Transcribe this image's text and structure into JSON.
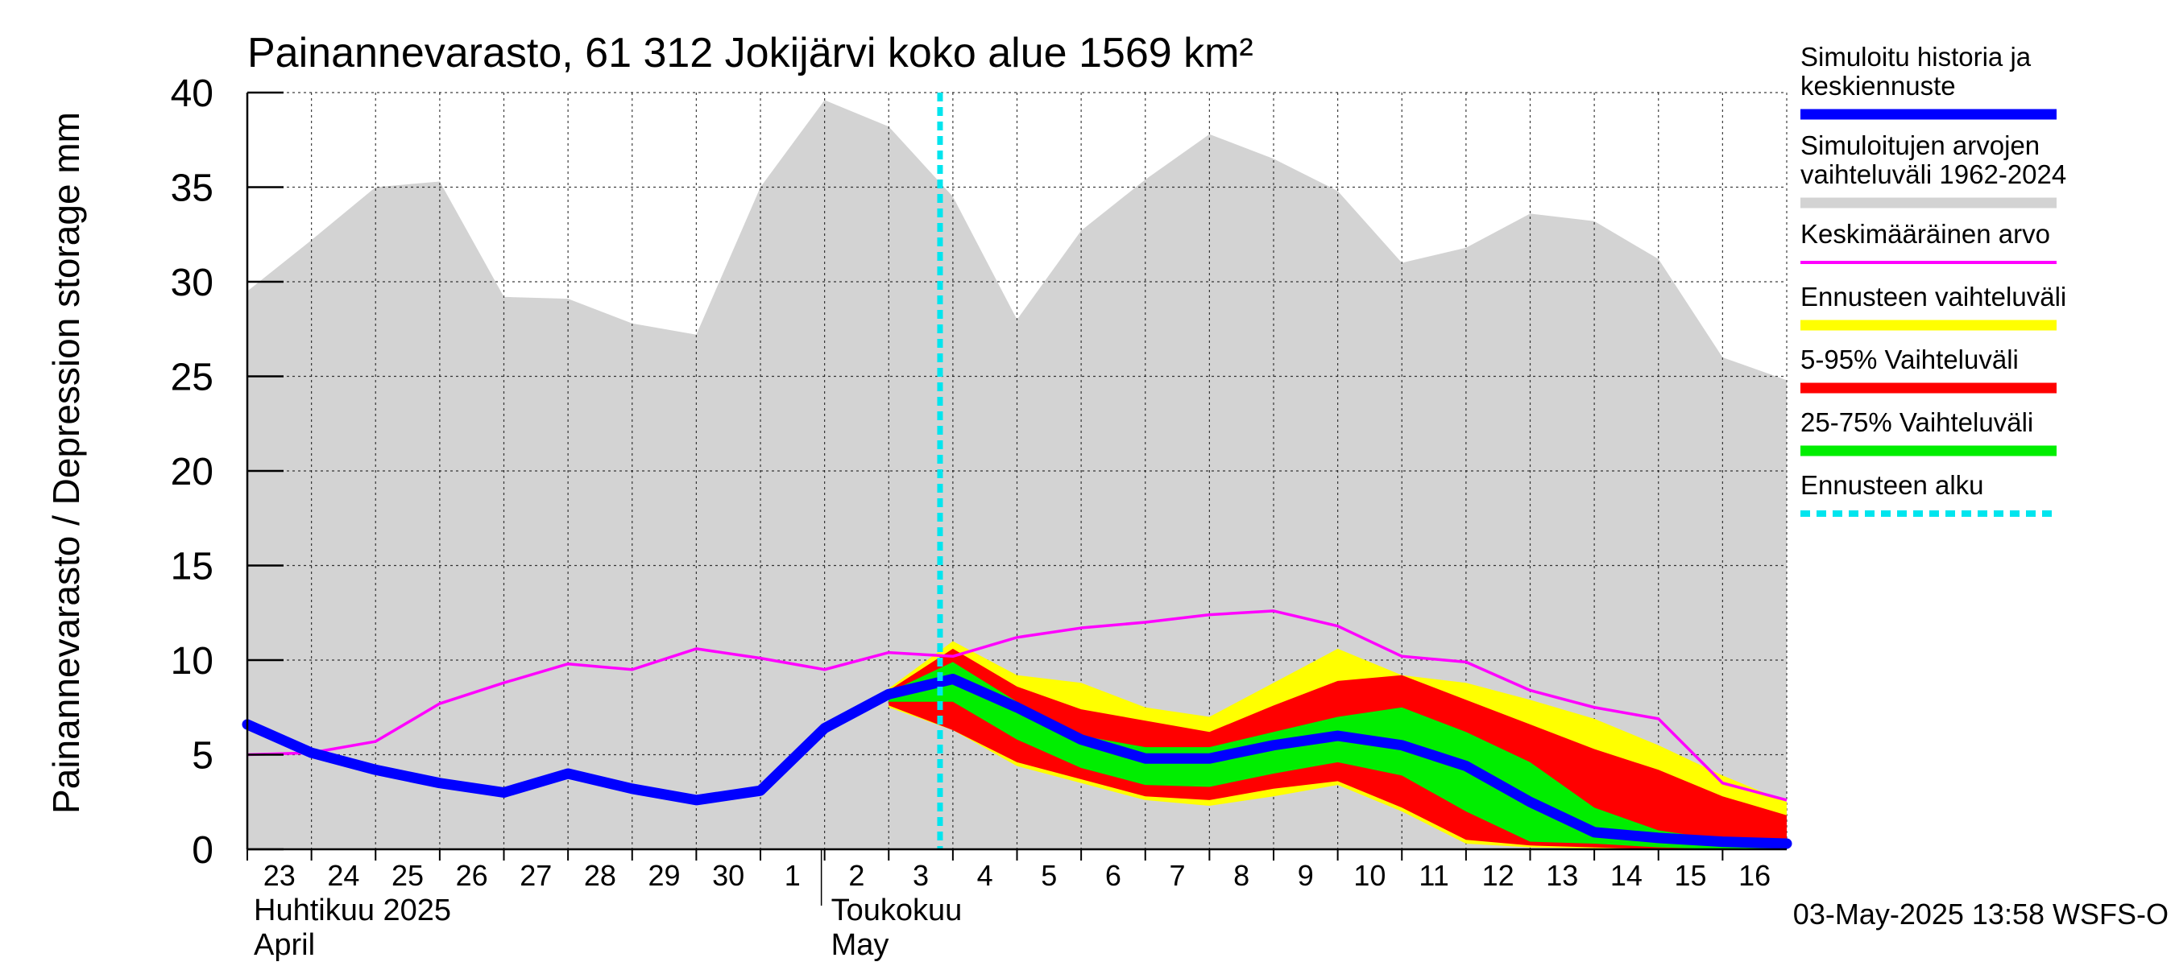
{
  "chart_data": {
    "type": "area",
    "title": "Painannevarasto, 61 312 Jokijärvi koko alue 1569 km²",
    "ylabel": "Painannevarasto / Depression storage    mm",
    "ylim": [
      0,
      40
    ],
    "y_ticks": [
      "0",
      "5",
      "10",
      "15",
      "20",
      "25",
      "30",
      "35",
      "40"
    ],
    "grid": true,
    "x_dates": [
      "2025-04-23",
      "2025-04-24",
      "2025-04-25",
      "2025-04-26",
      "2025-04-27",
      "2025-04-28",
      "2025-04-29",
      "2025-04-30",
      "2025-05-01",
      "2025-05-02",
      "2025-05-03",
      "2025-05-04",
      "2025-05-05",
      "2025-05-06",
      "2025-05-07",
      "2025-05-08",
      "2025-05-09",
      "2025-05-10",
      "2025-05-11",
      "2025-05-12",
      "2025-05-13",
      "2025-05-14",
      "2025-05-15",
      "2025-05-16",
      "2025-05-17"
    ],
    "x_ticks": [
      "23",
      "24",
      "25",
      "26",
      "27",
      "28",
      "29",
      "30",
      "1",
      "2",
      "3",
      "4",
      "5",
      "6",
      "7",
      "8",
      "9",
      "10",
      "11",
      "12",
      "13",
      "14",
      "15",
      "16"
    ],
    "month_labels": [
      {
        "line1": "Huhtikuu  2025",
        "line2": "April",
        "start_index": 0
      },
      {
        "line1": "Toukokuu",
        "line2": "May",
        "start_index": 9
      }
    ],
    "forecast_start_index": 10.8,
    "range_1962_2024": {
      "upper": [
        29.5,
        32.2,
        35.0,
        35.3,
        29.2,
        29.1,
        27.8,
        27.2,
        35.0,
        39.6,
        38.2,
        34.5,
        28.0,
        32.7,
        35.4,
        37.8,
        36.5,
        34.8,
        31.0,
        31.8,
        33.6,
        33.2,
        31.2,
        26.0,
        24.8
      ],
      "lower": [
        0,
        0,
        0,
        0,
        0,
        0,
        0,
        0,
        0,
        0,
        0,
        0,
        0,
        0,
        0,
        0,
        0,
        0,
        0,
        0,
        0,
        0,
        0,
        0,
        0
      ]
    },
    "mean": [
      5.0,
      5.1,
      5.7,
      7.7,
      8.8,
      9.8,
      9.5,
      10.6,
      10.1,
      9.5,
      10.4,
      10.2,
      11.2,
      11.7,
      12.0,
      12.4,
      12.6,
      11.8,
      10.2,
      9.9,
      8.4,
      7.5,
      6.9,
      3.5,
      2.6
    ],
    "history_and_median": [
      6.6,
      5.1,
      4.2,
      3.5,
      3.0,
      4.0,
      3.2,
      2.6,
      3.1,
      6.4,
      8.2,
      9.0,
      7.5,
      5.8,
      4.8,
      4.8,
      5.5,
      6.0,
      5.5,
      4.4,
      2.5,
      0.9,
      0.6,
      0.4,
      0.3
    ],
    "forecast_range": {
      "start_index": 10,
      "upper": [
        8.5,
        11.0,
        9.2,
        8.8,
        7.5,
        7.0,
        8.8,
        10.6,
        9.2,
        8.8,
        7.9,
        6.9,
        5.5,
        3.9,
        2.5
      ],
      "lower": [
        7.5,
        6.3,
        4.4,
        3.5,
        2.6,
        2.3,
        2.8,
        3.4,
        2.0,
        0.3,
        0.1,
        0.05,
        0.0,
        0.0,
        0.0
      ]
    },
    "range_5_95": {
      "start_index": 10,
      "upper": [
        8.4,
        10.6,
        8.6,
        7.4,
        6.8,
        6.2,
        7.6,
        8.9,
        9.2,
        7.9,
        6.6,
        5.3,
        4.2,
        2.8,
        1.8
      ],
      "lower": [
        7.6,
        6.3,
        4.6,
        3.7,
        2.8,
        2.6,
        3.2,
        3.6,
        2.2,
        0.5,
        0.2,
        0.1,
        0.0,
        0.0,
        0.0
      ]
    },
    "range_25_75": {
      "start_index": 10,
      "upper": [
        8.3,
        9.9,
        7.8,
        6.0,
        5.4,
        5.4,
        6.2,
        7.0,
        7.5,
        6.2,
        4.6,
        2.2,
        1.0,
        0.5,
        0.4
      ],
      "lower": [
        7.8,
        7.8,
        5.8,
        4.3,
        3.4,
        3.3,
        4.0,
        4.6,
        3.9,
        2.0,
        0.4,
        0.3,
        0.1,
        0.0,
        0.0
      ]
    },
    "legend": [
      {
        "label": "Simuloitu historia ja\nkeskiennuste",
        "color": "#0000ff",
        "style": "thick"
      },
      {
        "label": "Simuloitujen arvojen\nvaihteluväli 1962-2024",
        "color": "#d3d3d3",
        "style": "thick"
      },
      {
        "label": "Keskimääräinen arvo",
        "color": "#ff00ff",
        "style": "thin"
      },
      {
        "label": "Ennusteen vaihteluväli",
        "color": "#ffff00",
        "style": "thick"
      },
      {
        "label": "5-95% Vaihteluväli",
        "color": "#ff0000",
        "style": "thick"
      },
      {
        "label": "25-75% Vaihteluväli",
        "color": "#00ee00",
        "style": "thick"
      },
      {
        "label": "Ennusteen alku",
        "color": "#00e5ee",
        "style": "dashed"
      }
    ],
    "footer": "03-May-2025 13:58 WSFS-O"
  }
}
